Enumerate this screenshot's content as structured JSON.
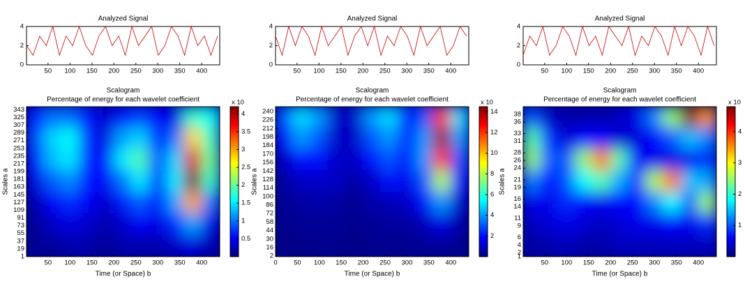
{
  "chart_data": [
    {
      "type": "line",
      "title": "Analyzed Signal",
      "color": "#cc0000",
      "x": [
        1,
        16,
        31,
        46,
        61,
        76,
        91,
        106,
        121,
        136,
        151,
        166,
        181,
        196,
        211,
        226,
        241,
        256,
        271,
        286,
        301,
        316,
        331,
        346,
        361,
        376,
        391,
        406,
        421,
        436
      ],
      "values": [
        2,
        1,
        3,
        2,
        4,
        1,
        3,
        2,
        4,
        2,
        1,
        3,
        4,
        2,
        3,
        1,
        4,
        2,
        3,
        4,
        1,
        2,
        4,
        3,
        1,
        4,
        2,
        3,
        1,
        3
      ],
      "xlim": [
        1,
        441
      ],
      "xticks": [
        50,
        100,
        150,
        200,
        250,
        300,
        350,
        400
      ],
      "ylim": [
        0,
        4
      ],
      "yticks": [
        0,
        2,
        4
      ]
    },
    {
      "type": "heatmap",
      "title": "Scalogram",
      "subtitle": "Percentage of energy for each wavelet coefficient",
      "xlabel": "Time (or Space) b",
      "ylabel": "Scales a",
      "colormap": "jet",
      "xlim": [
        1,
        441
      ],
      "xticks": [
        50,
        100,
        150,
        200,
        250,
        300,
        350,
        400
      ],
      "ylim": [
        1,
        350
      ],
      "yticks": [
        1,
        19,
        37,
        55,
        73,
        91,
        109,
        127,
        145,
        163,
        181,
        199,
        217,
        235,
        253,
        271,
        289,
        307,
        325,
        343
      ],
      "values": [
        [
          0.6,
          1.0,
          1.0,
          0.6,
          0.3,
          0.6,
          0.8,
          0.5,
          0.4,
          1.8,
          1.6
        ],
        [
          0.8,
          1.4,
          1.6,
          0.7,
          0.4,
          1.2,
          1.4,
          0.6,
          1.0,
          2.8,
          1.8
        ],
        [
          0.6,
          1.3,
          1.5,
          0.7,
          0.5,
          1.5,
          1.9,
          0.8,
          1.4,
          3.8,
          2.0
        ],
        [
          0.4,
          0.9,
          1.1,
          0.6,
          0.5,
          1.0,
          1.5,
          0.7,
          1.5,
          4.2,
          1.8
        ],
        [
          0.2,
          0.5,
          0.7,
          0.5,
          0.3,
          0.6,
          0.9,
          0.6,
          1.2,
          3.0,
          1.0
        ],
        [
          0.1,
          0.3,
          0.4,
          0.3,
          0.2,
          0.3,
          0.5,
          0.4,
          0.7,
          1.2,
          0.4
        ],
        [
          0.1,
          0.1,
          0.2,
          0.2,
          0.1,
          0.2,
          0.2,
          0.2,
          0.3,
          0.4,
          0.2
        ]
      ],
      "colorbar": {
        "label": "x 10",
        "lim": [
          0,
          4.2
        ],
        "ticks": [
          0.5,
          1,
          1.5,
          2,
          2.5,
          3,
          3.5,
          4
        ]
      }
    },
    {
      "type": "line",
      "title": "Analyzed Signal",
      "color": "#cc0000",
      "x": [
        1,
        16,
        31,
        46,
        61,
        76,
        91,
        106,
        121,
        136,
        151,
        166,
        181,
        196,
        211,
        226,
        241,
        256,
        271,
        286,
        301,
        316,
        331,
        346,
        361,
        376,
        391,
        406,
        421,
        436
      ],
      "values": [
        3,
        1,
        4,
        2,
        4,
        3,
        1,
        4,
        2,
        3,
        4,
        1,
        3,
        4,
        2,
        4,
        1,
        3,
        2,
        4,
        3,
        1,
        4,
        2,
        3,
        4,
        1,
        2,
        4,
        3
      ],
      "xlim": [
        1,
        441
      ],
      "xticks": [
        50,
        100,
        150,
        200,
        250,
        300,
        350,
        400
      ],
      "ylim": [
        0,
        4
      ],
      "yticks": [
        0,
        2,
        4
      ]
    },
    {
      "type": "heatmap",
      "title": "Scalogram",
      "subtitle": "Percentage of energy for each wavelet coefficient",
      "xlabel": "Time (or Space) b",
      "ylabel": "Scales a",
      "colormap": "jet",
      "xlim": [
        0,
        441
      ],
      "xticks": [
        0,
        50,
        100,
        150,
        200,
        250,
        300,
        350,
        400
      ],
      "ylim": [
        1,
        248
      ],
      "yticks": [
        2,
        16,
        30,
        44,
        58,
        72,
        86,
        100,
        114,
        128,
        142,
        156,
        170,
        184,
        198,
        212,
        226,
        240
      ],
      "values": [
        [
          3,
          5,
          4,
          1,
          1,
          4,
          5,
          2,
          3,
          12,
          5
        ],
        [
          2,
          4,
          3,
          1,
          1,
          3,
          4,
          2,
          4,
          14,
          4
        ],
        [
          1,
          2,
          2,
          1,
          1,
          2,
          3,
          2,
          4,
          12,
          3
        ],
        [
          0.5,
          1,
          1,
          1,
          0.5,
          1,
          2,
          1.5,
          3,
          8,
          2
        ],
        [
          0.3,
          0.5,
          0.6,
          0.5,
          0.3,
          0.6,
          0.8,
          1,
          2,
          4,
          1
        ],
        [
          0.2,
          0.3,
          0.3,
          0.3,
          0.2,
          0.3,
          0.4,
          0.5,
          0.8,
          1.5,
          0.5
        ],
        [
          0.1,
          0.1,
          0.2,
          0.2,
          0.1,
          0.2,
          0.2,
          0.2,
          0.3,
          0.4,
          0.2
        ]
      ],
      "colorbar": {
        "label": "x 10",
        "lim": [
          0,
          14.5
        ],
        "ticks": [
          2,
          4,
          6,
          8,
          10,
          12,
          14
        ]
      }
    },
    {
      "type": "line",
      "title": "Analyzed Signal",
      "color": "#cc0000",
      "x": [
        1,
        16,
        31,
        46,
        61,
        76,
        91,
        106,
        121,
        136,
        151,
        166,
        181,
        196,
        211,
        226,
        241,
        256,
        271,
        286,
        301,
        316,
        331,
        346,
        361,
        376,
        391,
        406,
        421,
        436
      ],
      "values": [
        1,
        3,
        2,
        4,
        1,
        2,
        4,
        3,
        1,
        4,
        2,
        3,
        1,
        4,
        3,
        2,
        4,
        1,
        3,
        2,
        4,
        3,
        1,
        4,
        2,
        4,
        3,
        1,
        4,
        2
      ],
      "xlim": [
        1,
        441
      ],
      "xticks": [
        50,
        100,
        150,
        200,
        250,
        300,
        350,
        400
      ],
      "ylim": [
        0,
        4
      ],
      "yticks": [
        0,
        2,
        4
      ]
    },
    {
      "type": "heatmap",
      "title": "Scalogram",
      "subtitle": "Percentage of energy for each wavelet coefficient",
      "xlabel": "Time (or Space) b",
      "ylabel": "Scales a",
      "colormap": "jet",
      "xlim": [
        1,
        441
      ],
      "xticks": [
        50,
        100,
        150,
        200,
        250,
        300,
        350,
        400
      ],
      "ylim": [
        1,
        40
      ],
      "yticks": [
        1,
        2,
        4,
        6,
        9,
        11,
        14,
        16,
        19,
        21,
        24,
        26,
        28,
        31,
        33,
        36,
        38
      ],
      "values": [
        [
          1.0,
          0.3,
          0.2,
          0.2,
          0.2,
          0.3,
          0.5,
          1.2,
          2.5,
          4.8,
          3.5
        ],
        [
          2.2,
          0.8,
          0.4,
          0.6,
          0.6,
          0.4,
          0.4,
          0.6,
          1.0,
          1.5,
          1.2
        ],
        [
          2.5,
          1.0,
          1.0,
          2.5,
          3.7,
          2.2,
          0.6,
          0.5,
          0.5,
          0.5,
          0.8
        ],
        [
          1.2,
          0.6,
          1.0,
          1.8,
          2.2,
          1.4,
          0.8,
          2.6,
          3.7,
          1.5,
          1.4
        ],
        [
          0.5,
          0.5,
          0.8,
          0.6,
          0.5,
          0.6,
          0.6,
          1.2,
          1.8,
          1.0,
          2.5
        ],
        [
          0.3,
          0.4,
          0.5,
          0.4,
          0.3,
          0.4,
          0.5,
          0.5,
          0.6,
          0.5,
          0.8
        ],
        [
          0.2,
          0.2,
          0.3,
          0.2,
          0.2,
          0.3,
          0.3,
          0.3,
          0.3,
          0.3,
          0.3
        ]
      ],
      "colorbar": {
        "label": "x 10",
        "lim": [
          0,
          4.8
        ],
        "ticks": [
          1,
          2,
          3,
          4
        ]
      }
    }
  ]
}
